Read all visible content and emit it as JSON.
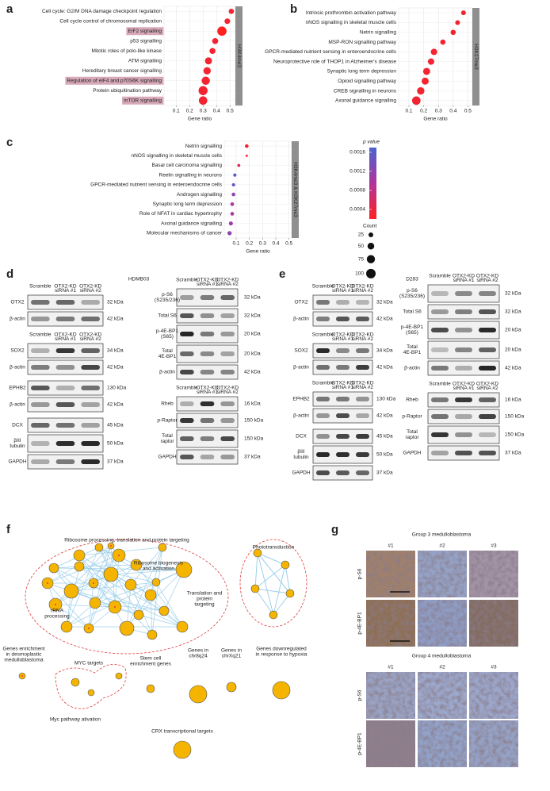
{
  "panel_labels": [
    "a",
    "b",
    "c",
    "d",
    "e",
    "f",
    "g"
  ],
  "chart_data": [
    {
      "type": "dot",
      "strip": "H3K4me3",
      "categories": [
        "Cell cycle: G2/M DNA damage checkpoint regulation",
        "Cell cycle control of chromosomal replication",
        "EIF2 signalling",
        "p53 signalling",
        "Mitotic roles of polo-like kinase",
        "ATM signalling",
        "Hereditary breast cancer signalling",
        "Regulation of eIF4 and p70S6K signalling",
        "Protein ubiquitination pathway",
        "mTOR signalling"
      ],
      "highlight": [
        false,
        false,
        true,
        false,
        false,
        false,
        false,
        true,
        false,
        true
      ],
      "values": [
        0.51,
        0.48,
        0.44,
        0.39,
        0.37,
        0.34,
        0.33,
        0.32,
        0.3,
        0.3
      ],
      "counts": [
        30,
        35,
        95,
        40,
        40,
        55,
        60,
        75,
        90,
        80
      ],
      "pvalues": [
        0.0003,
        0.0003,
        0.0002,
        0.0003,
        0.0003,
        0.0003,
        0.0003,
        0.0003,
        0.0003,
        0.0003
      ],
      "xlim": [
        0.01,
        0.54
      ],
      "xticks": [
        0.1,
        0.2,
        0.3,
        0.4,
        0.5
      ],
      "xlabel": "Gene ratio",
      "grid": true
    },
    {
      "type": "dot",
      "strip": "H3K27me3",
      "categories": [
        "Intrinsic prothrombin activation pathway",
        "nNOS signalling in skeletal muscle cells",
        "Netrin signalling",
        "MSP-RON signalling pathway",
        "GPCR-mediated nutrient sensing in enteroendocrine cells",
        "Neuroprotective role of THOP1 in Alzheimer's disease",
        "Synaptic long term depression",
        "Opioid signalling pathway",
        "CREB signalling in neurons",
        "Axonal guidance signalling"
      ],
      "values": [
        0.47,
        0.43,
        0.4,
        0.33,
        0.27,
        0.25,
        0.22,
        0.21,
        0.18,
        0.15
      ],
      "counts": [
        25,
        25,
        30,
        30,
        45,
        45,
        55,
        55,
        60,
        80
      ],
      "pvalues": [
        0.0003,
        0.0003,
        0.0003,
        0.0003,
        0.0003,
        0.0003,
        0.0003,
        0.0003,
        0.0003,
        0.0003
      ],
      "xlim": [
        0.03,
        0.53
      ],
      "xticks": [
        0.1,
        0.2,
        0.3,
        0.4,
        0.5
      ],
      "xlabel": "Gene ratio",
      "grid": true
    },
    {
      "type": "dot",
      "strip": "H3K4me3 & H3K27me3",
      "categories": [
        "Netrin signalling",
        "nNOS signalling in skeletal muscle cells",
        "Basal cell carcinoma signalling",
        "Reelin signalling in neurons",
        "GPCR-mediated nutrient sensing in enteroendocrine cells",
        "Androgen signalling",
        "Synaptic long term depression",
        "Role of NFAT in cardiac hypertrophy",
        "Axonal guidance signalling",
        "Molecular mechanisms of cancer"
      ],
      "values": [
        0.18,
        0.18,
        0.12,
        0.09,
        0.08,
        0.08,
        0.07,
        0.07,
        0.06,
        0.05
      ],
      "counts": [
        15,
        6,
        10,
        12,
        12,
        15,
        15,
        15,
        18,
        20
      ],
      "pvalues": [
        0.0003,
        0.0003,
        0.0005,
        0.0016,
        0.0015,
        0.0012,
        0.001,
        0.001,
        0.0011,
        0.0012
      ],
      "xlim": [
        0.01,
        0.52
      ],
      "xticks": [
        0.1,
        0.2,
        0.3,
        0.4,
        0.5
      ],
      "xlabel": "Gene ratio",
      "grid": true
    }
  ],
  "legend": {
    "color_title": "p value",
    "color_lim": [
      0.0002,
      0.0017
    ],
    "color_ticks": [
      0.0004,
      0.0008,
      0.0012,
      0.0016
    ],
    "colors": [
      "#ff2020",
      "#b0349c",
      "#4a63d0"
    ],
    "size_title": "Count",
    "size_ticks": [
      25,
      50,
      75,
      100
    ]
  },
  "blots": {
    "d": {
      "title": "HDMB03",
      "columns": [
        [
          {
            "lanes": [
              [
                "Scramble"
              ],
              [
                "OTX2-KD",
                "siRNA #1"
              ],
              [
                "OTX2-KD",
                "siRNA #2"
              ]
            ],
            "rows": [
              {
                "label": [
                  "OTX2"
                ],
                "kda": "32 kDa"
              },
              {
                "label": [
                  "β-actin"
                ],
                "kda": "42 kDa"
              }
            ]
          },
          {
            "lanes": [
              [
                "Scramble"
              ],
              [
                "OTX2-KD",
                "siRNA #1"
              ],
              [
                "OTX2-KD",
                "siRNA #2"
              ]
            ],
            "rows": [
              {
                "label": [
                  "SOX2"
                ],
                "kda": "34 kDa"
              },
              {
                "label": [
                  "β-actin"
                ],
                "kda": "42 kDa"
              }
            ]
          },
          {
            "rows": [
              {
                "label": [
                  "EPHB2"
                ],
                "kda": "130 kDa"
              },
              {
                "label": [
                  "β-actin"
                ],
                "kda": "42 kDa"
              }
            ]
          },
          {
            "rows": [
              {
                "label": [
                  "DCX"
                ],
                "kda": "45 kDa"
              },
              {
                "label": [
                  "βIII",
                  "tubulin"
                ],
                "kda": "50 kDa"
              },
              {
                "label": [
                  "GAPDH"
                ],
                "kda": "37 kDa"
              }
            ]
          }
        ],
        [
          {
            "lanes": [
              [
                "Scramble"
              ],
              [
                "OTX2-KD",
                "siRNA #1"
              ],
              [
                "OTX2-KD",
                "siRNA #2"
              ]
            ],
            "rows": [
              {
                "label": [
                  "p-S6",
                  "(S235/236)"
                ],
                "kda": "32 kDa"
              },
              {
                "label": [
                  "Total S6"
                ],
                "kda": "32 kDa"
              },
              {
                "label": [
                  "p-4E-BP1",
                  "(S65)"
                ],
                "kda": "20 kDa"
              },
              {
                "label": [
                  "Total",
                  "4E-BP1"
                ],
                "kda": "20 kDa"
              },
              {
                "label": [
                  "β-actin"
                ],
                "kda": "42 kDa"
              }
            ]
          },
          {
            "lanes": [
              [
                "Scramble"
              ],
              [
                "OTX2-KD",
                "siRNA #1"
              ],
              [
                "OTX2-KD",
                "siRNA #2"
              ]
            ],
            "rows": [
              {
                "label": [
                  "Rheb"
                ],
                "kda": "16 kDa"
              },
              {
                "label": [
                  "p-Raptor"
                ],
                "kda": "150 kDa"
              },
              {
                "label": [
                  "Total",
                  "raptor"
                ],
                "kda": "150 kDa"
              },
              {
                "label": [
                  "GAPDH"
                ],
                "kda": "37 kDa"
              }
            ]
          }
        ]
      ]
    },
    "e": {
      "title": "D283",
      "columns": [
        [
          {
            "lanes": [
              [
                "Scramble"
              ],
              [
                "OTX2-KD",
                "siRNA #1"
              ],
              [
                "OTX2-KD",
                "siRNA #2"
              ]
            ],
            "rows": [
              {
                "label": [
                  "OTX2"
                ],
                "kda": "32 kDa"
              },
              {
                "label": [
                  "β-actin"
                ],
                "kda": "42 kDa"
              }
            ]
          },
          {
            "lanes": [
              [
                "Scramble"
              ],
              [
                "OTX2-KD",
                "siRNA #1"
              ],
              [
                "OTX2-KD",
                "siRNA #2"
              ]
            ],
            "rows": [
              {
                "label": [
                  "SOX2"
                ],
                "kda": "34 kDa"
              },
              {
                "label": [
                  "β-actin"
                ],
                "kda": "42 kDa"
              }
            ]
          },
          {
            "lanes": [
              [
                "Scramble"
              ],
              [
                "OTX2-KD",
                "siRNA #1"
              ],
              [
                "OTX2-KD",
                "siRNA #2"
              ]
            ],
            "rows": [
              {
                "label": [
                  "EPHB2"
                ],
                "kda": "130 kDa"
              },
              {
                "label": [
                  "β-actin"
                ],
                "kda": "42 kDa"
              }
            ]
          },
          {
            "rows": [
              {
                "label": [
                  "DCX"
                ],
                "kda": "45 kDa"
              },
              {
                "label": [
                  "βIII",
                  "tubulin"
                ],
                "kda": "50 kDa"
              },
              {
                "label": [
                  "GAPDH"
                ],
                "kda": "37 kDa"
              }
            ]
          }
        ],
        [
          {
            "lanes": [
              [
                "Scramble"
              ],
              [
                "OTX2-KD",
                "siRNA #1"
              ],
              [
                "OTX2-KD",
                "siRNA #2"
              ]
            ],
            "rows": [
              {
                "label": [
                  "p-S6",
                  "(S235/236)"
                ],
                "kda": "32 kDa"
              },
              {
                "label": [
                  "Total S6"
                ],
                "kda": "32 kDa"
              },
              {
                "label": [
                  "p-4E-BP1",
                  "(S65)"
                ],
                "kda": "20 kDa"
              },
              {
                "label": [
                  "Total",
                  "4E-BP1"
                ],
                "kda": "20 kDa"
              },
              {
                "label": [
                  "β-actin"
                ],
                "kda": "42 kDa"
              }
            ]
          },
          {
            "lanes": [
              [
                "Scramble"
              ],
              [
                "OTX2-KD",
                "siRNA #1"
              ],
              [
                "OTX2-KD",
                "siRNA #2"
              ]
            ],
            "rows": [
              {
                "label": [
                  "Rheb"
                ],
                "kda": "16 kDa"
              },
              {
                "label": [
                  "p-Raptor"
                ],
                "kda": "150 kDa"
              },
              {
                "label": [
                  "Total",
                  "raptor"
                ],
                "kda": "150 kDa"
              },
              {
                "label": [
                  "GAPDH"
                ],
                "kda": "37 kDa"
              }
            ]
          }
        ]
      ]
    }
  },
  "network": {
    "clusters": [
      {
        "title": "Ribosome processing, translation and protein targeting",
        "labels": [
          [
            "Ribosome biogenesis",
            "and activation"
          ],
          [
            "Translation and",
            "protein",
            "targeting"
          ],
          [
            "rRNA",
            "processing"
          ]
        ]
      },
      {
        "title": "Phototransduction"
      }
    ],
    "sets": [
      [
        "Genes enrichment",
        "in desmoplastic",
        "medulloblastoma"
      ],
      [
        "MYC targets"
      ],
      [
        "Myc pathway ativation"
      ],
      [
        "Stem cell",
        "enrichment genes"
      ],
      [
        "Genes in",
        "chr8q24"
      ],
      [
        "Genes in",
        "chrXq21"
      ],
      [
        "Genes downregulated",
        "in response to hypoxia"
      ],
      [
        "CRX transcriptional targets"
      ]
    ]
  },
  "ihc": {
    "groups": [
      {
        "title": "Group 3 medulloblastoma",
        "columns": [
          "#1",
          "#2",
          "#3"
        ],
        "rows": [
          "p-S6",
          "p-4E-BP1"
        ]
      },
      {
        "title": "Group 4 medulloblastoma",
        "columns": [
          "#1",
          "#2",
          "#3"
        ],
        "rows": [
          "p-S6",
          "p-4E-BP1"
        ]
      }
    ]
  }
}
